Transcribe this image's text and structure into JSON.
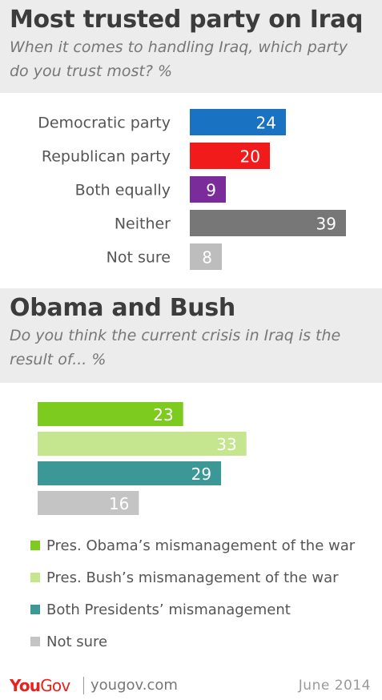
{
  "sections": [
    {
      "title": "Most trusted party on Iraq",
      "subtitle_line1": "When it comes to handling Iraq, which party",
      "subtitle_line2": "do you trust most? %"
    },
    {
      "title": "Obama and Bush",
      "subtitle_line1": "Do you think the current crisis in Iraq is the",
      "subtitle_line2": "result of... %"
    }
  ],
  "chart_data": [
    {
      "type": "bar",
      "orientation": "horizontal",
      "categories": [
        "Democratic party",
        "Republican party",
        "Both equally",
        "Neither",
        "Not sure"
      ],
      "values": [
        24,
        20,
        9,
        39,
        8
      ],
      "colors": [
        "#1a73c2",
        "#f21b1b",
        "#7b2c9b",
        "#777777",
        "#bdbdbd"
      ]
    },
    {
      "type": "bar",
      "orientation": "horizontal",
      "categories": [
        "Pres. Obama’s mismanagement of the war",
        "Pres. Bush’s mismanagement of the war",
        "Both Presidents’ mismanagement",
        "Not sure"
      ],
      "values": [
        23,
        33,
        29,
        16
      ],
      "colors": [
        "#7ecb1f",
        "#c5e58e",
        "#3c9797",
        "#c4c4c4"
      ],
      "legend": "bottom"
    }
  ],
  "footer": {
    "logo_you": "You",
    "logo_gov": "Gov",
    "site": "yougov.com",
    "date": "June 2014"
  }
}
